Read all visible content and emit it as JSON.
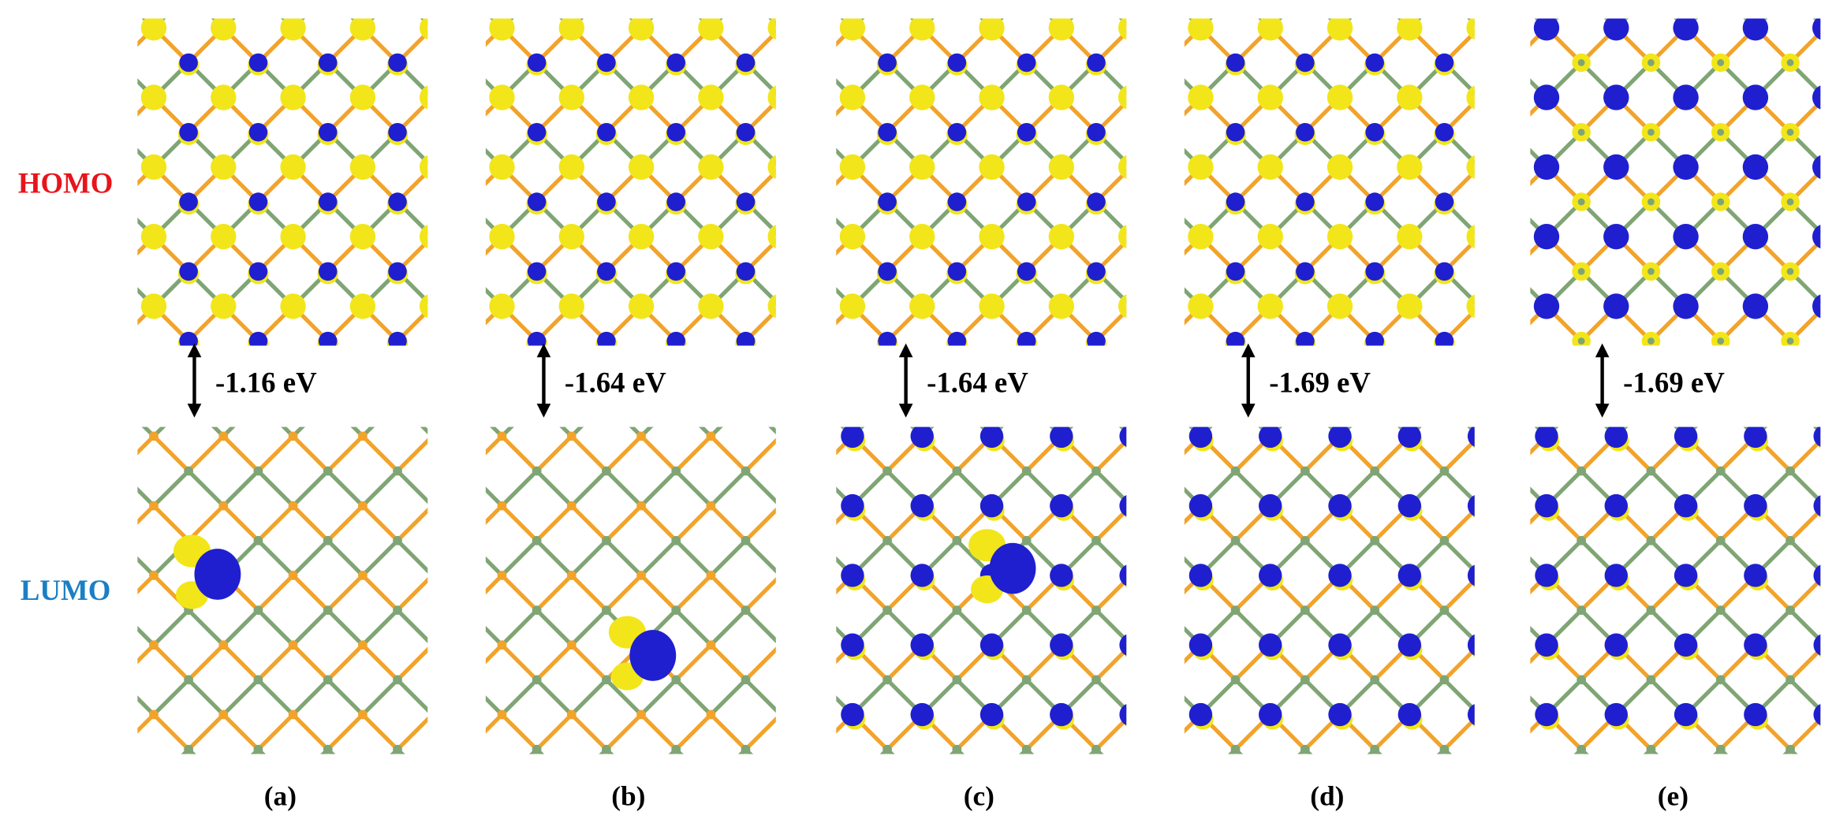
{
  "row_labels": {
    "homo": "HOMO",
    "lumo": "LUMO"
  },
  "panels": [
    {
      "label": "(a)",
      "gap": "-1.16 eV"
    },
    {
      "label": "(b)",
      "gap": "-1.64 eV"
    },
    {
      "label": "(c)",
      "gap": "-1.64 eV"
    },
    {
      "label": "(d)",
      "gap": "-1.69 eV"
    },
    {
      "label": "(e)",
      "gap": "-1.69 eV"
    }
  ]
}
